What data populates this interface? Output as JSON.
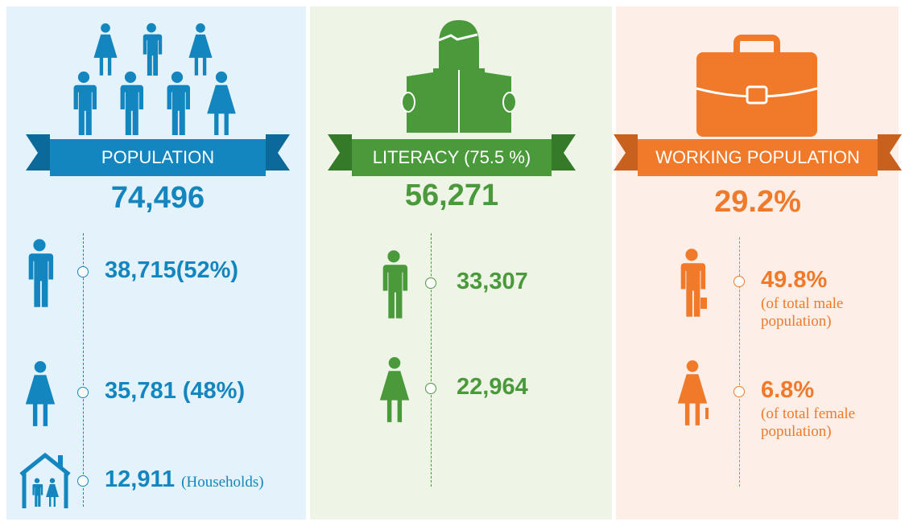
{
  "panels": [
    {
      "banner": "POPULATION",
      "total": "74,496",
      "items": [
        {
          "value": "38,715(52%)"
        },
        {
          "value": "35,781 (48%)"
        },
        {
          "value": "12,911",
          "note": "(Households)"
        }
      ]
    },
    {
      "banner": "LITERACY (75.5 %)",
      "total": "56,271",
      "items": [
        {
          "value": "33,307"
        },
        {
          "value": "22,964"
        }
      ]
    },
    {
      "banner": "WORKING POPULATION",
      "total": "29.2%",
      "items": [
        {
          "value": "49.8%",
          "note": "(of total male population)"
        },
        {
          "value": "6.8%",
          "note": "(of total female population)"
        }
      ]
    }
  ]
}
